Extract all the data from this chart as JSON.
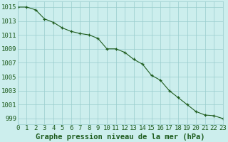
{
  "x": [
    0,
    1,
    2,
    3,
    4,
    5,
    6,
    7,
    8,
    9,
    10,
    11,
    12,
    13,
    14,
    15,
    16,
    17,
    18,
    19,
    20,
    21,
    22,
    23
  ],
  "y": [
    1015.0,
    1015.0,
    1014.6,
    1013.3,
    1012.8,
    1012.0,
    1011.5,
    1011.2,
    1011.0,
    1010.5,
    1009.0,
    1009.0,
    1008.5,
    1007.5,
    1006.8,
    1005.2,
    1004.5,
    1003.0,
    1002.0,
    1001.0,
    1000.0,
    999.5,
    999.4,
    999.0
  ],
  "line_color": "#1e5c1e",
  "marker": "+",
  "marker_color": "#1e5c1e",
  "bg_color": "#cceeed",
  "grid_color": "#99cccc",
  "ylabel_ticks": [
    999,
    1001,
    1003,
    1005,
    1007,
    1009,
    1011,
    1013,
    1015
  ],
  "ylim": [
    998.2,
    1015.8
  ],
  "xlim": [
    0,
    23
  ],
  "xlabel": "Graphe pression niveau de la mer (hPa)",
  "xlabel_fontsize": 7.5,
  "tick_fontsize": 6.5,
  "label_color": "#1e5c1e"
}
